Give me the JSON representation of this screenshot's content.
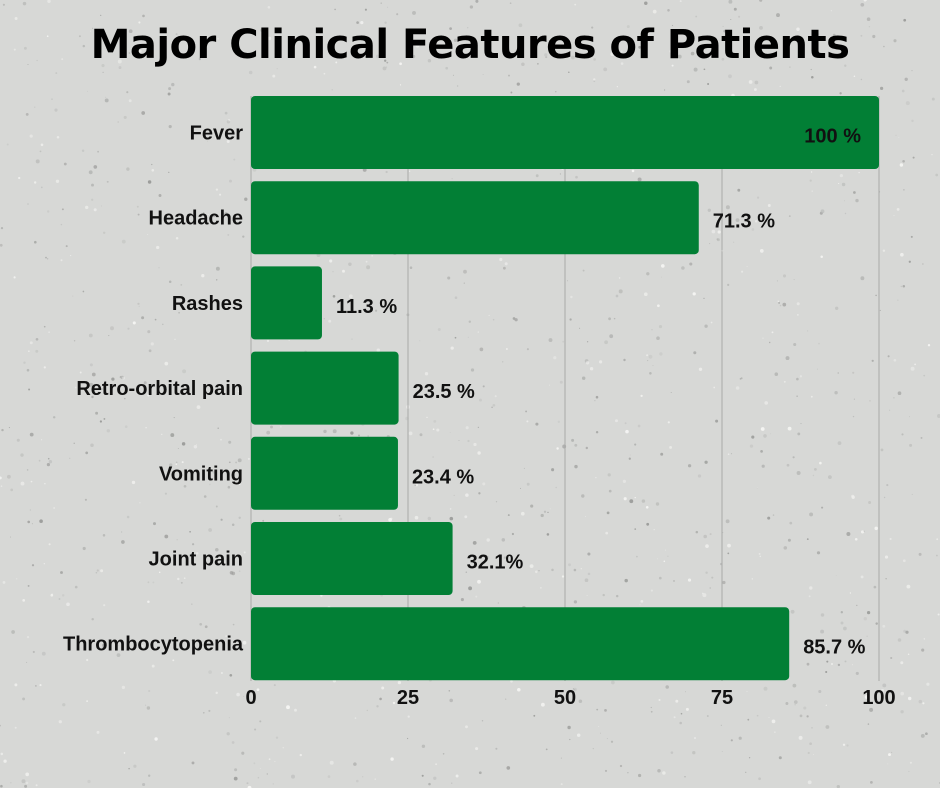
{
  "chart_data": {
    "type": "bar",
    "orientation": "horizontal",
    "title": "Major Clinical Features of Patients",
    "xlabel": "",
    "ylabel": "",
    "categories": [
      "Fever",
      "Headache",
      "Rashes",
      "Retro-orbital pain",
      "Vomiting",
      "Joint pain",
      "Thrombocytopenia"
    ],
    "values": [
      100,
      71.3,
      11.3,
      23.5,
      23.4,
      32.1,
      85.7
    ],
    "data_labels": [
      "100 %",
      "71.3 %",
      "11.3 %",
      "23.5 %",
      "23.4 %",
      "32.1%",
      "85.7 %"
    ],
    "xlim": [
      0,
      100
    ],
    "xticks": [
      0,
      25,
      50,
      75,
      100
    ],
    "grid": "vertical",
    "legend": "none",
    "bar_color": "#027f35",
    "background_color": "#d7d8d6"
  }
}
